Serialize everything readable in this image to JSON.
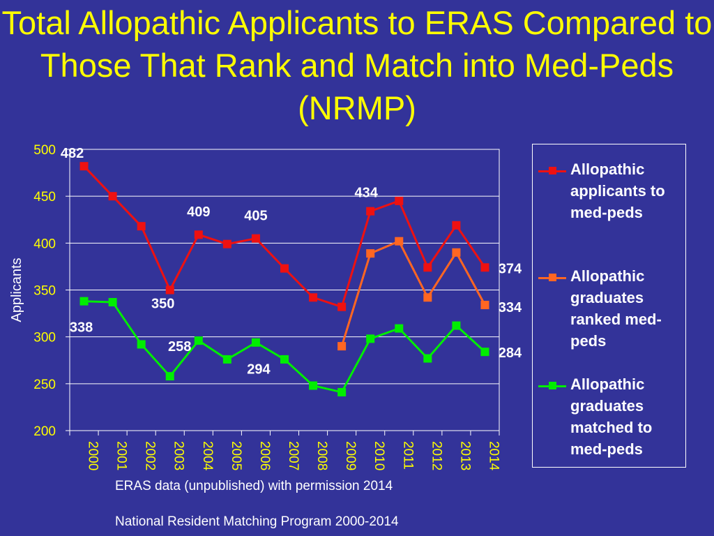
{
  "slide": {
    "title": "Total Allopathic Applicants to ERAS Compared to Those That Rank and Match into Med-Peds (NRMP)",
    "source_lines": [
      "ERAS data (unpublished) with permission 2014",
      "National Resident Matching Program 2000-2014"
    ]
  },
  "chart_data": {
    "type": "line",
    "title": "Total Allopathic Applicants to ERAS Compared to Those That Rank and Match into Med-Peds (NRMP)",
    "xlabel": "",
    "ylabel": "Applicants",
    "ylim": [
      200,
      500
    ],
    "yticks": [
      200,
      250,
      300,
      350,
      400,
      450,
      500
    ],
    "grid": true,
    "legend_position": "right",
    "categories": [
      "2000",
      "2001",
      "2002",
      "2003",
      "2004",
      "2005",
      "2006",
      "2007",
      "2008",
      "2009",
      "2010",
      "2011",
      "2012",
      "2013",
      "2014"
    ],
    "series": [
      {
        "name": "Allopathic applicants to med-peds",
        "color": "#ee1111",
        "values": [
          482,
          450,
          418,
          350,
          409,
          399,
          405,
          373,
          342,
          332,
          434,
          445,
          374,
          419,
          374
        ]
      },
      {
        "name": "Allopathic graduates ranked med-peds",
        "color": "#ff6622",
        "values": [
          null,
          null,
          null,
          null,
          null,
          null,
          null,
          null,
          null,
          290,
          389,
          402,
          342,
          390,
          334
        ]
      },
      {
        "name": "Allopathic graduates matched to med-peds",
        "color": "#00ee00",
        "values": [
          338,
          337,
          292,
          258,
          296,
          276,
          294,
          276,
          248,
          241,
          298,
          309,
          277,
          312,
          284
        ]
      }
    ],
    "data_labels": [
      {
        "text": "482",
        "series": 0,
        "index": 0
      },
      {
        "text": "409",
        "series": 0,
        "index": 4
      },
      {
        "text": "405",
        "series": 0,
        "index": 6
      },
      {
        "text": "350",
        "series": 0,
        "index": 3
      },
      {
        "text": "434",
        "series": 0,
        "index": 10
      },
      {
        "text": "374",
        "series": 0,
        "index": 14
      },
      {
        "text": "334",
        "series": 1,
        "index": 14
      },
      {
        "text": "338",
        "series": 2,
        "index": 0
      },
      {
        "text": "258",
        "series": 2,
        "index": 3
      },
      {
        "text": "294",
        "series": 2,
        "index": 6
      },
      {
        "text": "284",
        "series": 2,
        "index": 14
      }
    ],
    "colors": {
      "background": "#333399",
      "title": "#ffff00",
      "tick_labels": "#ffff00",
      "axis_label": "#ffffff",
      "data_labels": "#ffffff",
      "grid": "#ffffff"
    }
  }
}
